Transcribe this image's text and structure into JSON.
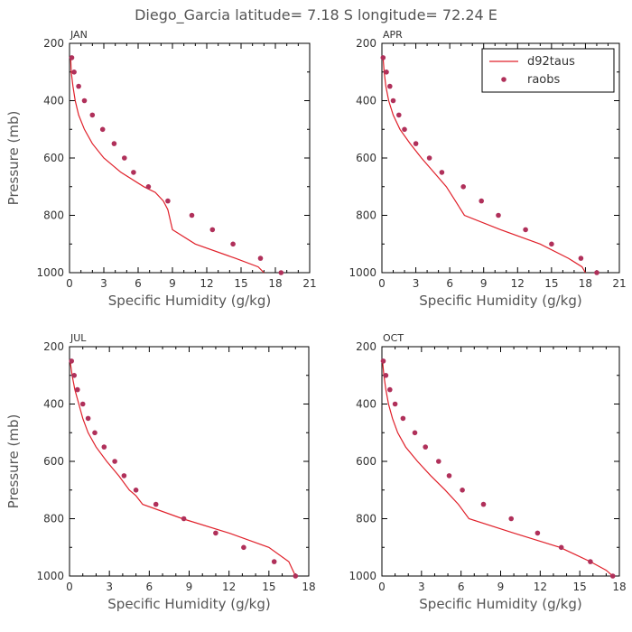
{
  "figure": {
    "title": "Diego_Garcia  latitude= 7.18 S longitude= 72.24 E",
    "ylabel": "Pressure (mb)",
    "xlabel": "Specific Humidity (g/kg)",
    "line_color": "#e0202a",
    "marker_color": "#b0305a"
  },
  "chart_data": [
    {
      "type": "line",
      "panel": "JAN",
      "xlim": [
        0,
        21
      ],
      "ylim": [
        1000,
        200
      ],
      "xticks": [
        "0",
        "3",
        "6",
        "9",
        "12",
        "15",
        "18",
        "21"
      ],
      "yticks": [
        "200",
        "400",
        "600",
        "800",
        "1000"
      ],
      "xlabel": "Specific Humidity (g/kg)",
      "ylabel": "Pressure (mb)",
      "legend": null,
      "series": [
        {
          "name": "d92taus",
          "kind": "line",
          "x": [
            0.1,
            0.15,
            0.3,
            0.5,
            0.8,
            1.3,
            2.0,
            3.0,
            4.5,
            6.5,
            7.5,
            8.2,
            8.6,
            9.0,
            11.0,
            14.5,
            16.5,
            17.0
          ],
          "y": [
            250,
            300,
            350,
            400,
            450,
            500,
            550,
            600,
            650,
            700,
            720,
            750,
            780,
            850,
            900,
            950,
            980,
            1000
          ]
        },
        {
          "name": "raobs",
          "kind": "scatter",
          "x": [
            0.2,
            0.4,
            0.8,
            1.3,
            2.0,
            2.9,
            3.9,
            4.8,
            5.6,
            6.9,
            8.6,
            10.7,
            12.5,
            14.3,
            16.7,
            18.5
          ],
          "y": [
            250,
            300,
            350,
            400,
            450,
            500,
            550,
            600,
            650,
            700,
            750,
            800,
            850,
            900,
            950,
            1000
          ]
        }
      ]
    },
    {
      "type": "line",
      "panel": "APR",
      "xlim": [
        0,
        21
      ],
      "ylim": [
        1000,
        200
      ],
      "xticks": [
        "0",
        "3",
        "6",
        "9",
        "12",
        "15",
        "18",
        "21"
      ],
      "yticks": [
        "200",
        "400",
        "600",
        "800",
        "1000"
      ],
      "xlabel": "Specific Humidity (g/kg)",
      "ylabel": "",
      "legend": {
        "position": "top-right",
        "entries": [
          "d92taus",
          "raobs"
        ]
      },
      "series": [
        {
          "name": "d92taus",
          "kind": "line",
          "x": [
            0.1,
            0.2,
            0.35,
            0.6,
            1.0,
            1.6,
            2.5,
            3.5,
            4.6,
            5.7,
            6.5,
            7.3,
            10.5,
            14.0,
            16.5,
            17.7,
            18.0
          ],
          "y": [
            250,
            300,
            350,
            400,
            450,
            500,
            550,
            600,
            650,
            700,
            750,
            800,
            850,
            900,
            950,
            980,
            1000
          ]
        },
        {
          "name": "raobs",
          "kind": "scatter",
          "x": [
            0.1,
            0.4,
            0.7,
            1.0,
            1.5,
            2.0,
            3.0,
            4.2,
            5.3,
            7.2,
            8.8,
            10.3,
            12.7,
            15.0,
            17.6,
            19.0
          ],
          "y": [
            250,
            300,
            350,
            400,
            450,
            500,
            550,
            600,
            650,
            700,
            750,
            800,
            850,
            900,
            950,
            1000
          ]
        }
      ]
    },
    {
      "type": "line",
      "panel": "JUL",
      "xlim": [
        0,
        18
      ],
      "ylim": [
        1000,
        200
      ],
      "xticks": [
        "0",
        "3",
        "6",
        "9",
        "12",
        "15",
        "18"
      ],
      "yticks": [
        "200",
        "400",
        "600",
        "800",
        "1000"
      ],
      "xlabel": "Specific Humidity (g/kg)",
      "ylabel": "Pressure (mb)",
      "legend": null,
      "series": [
        {
          "name": "d92taus",
          "kind": "line",
          "x": [
            0.05,
            0.2,
            0.4,
            0.7,
            1.0,
            1.4,
            2.0,
            2.8,
            3.7,
            4.5,
            5.0,
            5.5,
            8.5,
            12.0,
            15.0,
            16.5,
            17.0
          ],
          "y": [
            250,
            300,
            350,
            400,
            450,
            500,
            550,
            600,
            650,
            700,
            720,
            750,
            800,
            850,
            900,
            950,
            1000
          ]
        },
        {
          "name": "raobs",
          "kind": "scatter",
          "x": [
            0.15,
            0.35,
            0.6,
            1.0,
            1.4,
            1.9,
            2.6,
            3.4,
            4.1,
            5.0,
            6.5,
            8.6,
            11.0,
            13.1,
            15.4,
            17.0
          ],
          "y": [
            250,
            300,
            350,
            400,
            450,
            500,
            550,
            600,
            650,
            700,
            750,
            800,
            850,
            900,
            950,
            1000
          ]
        }
      ]
    },
    {
      "type": "line",
      "panel": "OCT",
      "xlim": [
        0,
        18
      ],
      "ylim": [
        1000,
        200
      ],
      "xticks": [
        "0",
        "3",
        "6",
        "9",
        "12",
        "15",
        "18"
      ],
      "yticks": [
        "200",
        "400",
        "600",
        "800",
        "1000"
      ],
      "xlabel": "Specific Humidity (g/kg)",
      "ylabel": "",
      "legend": null,
      "series": [
        {
          "name": "d92taus",
          "kind": "line",
          "x": [
            0.05,
            0.15,
            0.3,
            0.5,
            0.8,
            1.2,
            1.8,
            2.7,
            3.7,
            4.8,
            5.8,
            6.6,
            10.0,
            13.5,
            15.8,
            17.0,
            17.5
          ],
          "y": [
            250,
            300,
            350,
            400,
            450,
            500,
            550,
            600,
            650,
            700,
            750,
            800,
            850,
            900,
            950,
            980,
            1000
          ]
        },
        {
          "name": "raobs",
          "kind": "scatter",
          "x": [
            0.1,
            0.3,
            0.6,
            1.0,
            1.6,
            2.5,
            3.3,
            4.3,
            5.1,
            6.1,
            7.7,
            9.8,
            11.8,
            13.6,
            15.8,
            17.5
          ],
          "y": [
            250,
            300,
            350,
            400,
            450,
            500,
            550,
            600,
            650,
            700,
            750,
            800,
            850,
            900,
            950,
            1000
          ]
        }
      ]
    }
  ]
}
